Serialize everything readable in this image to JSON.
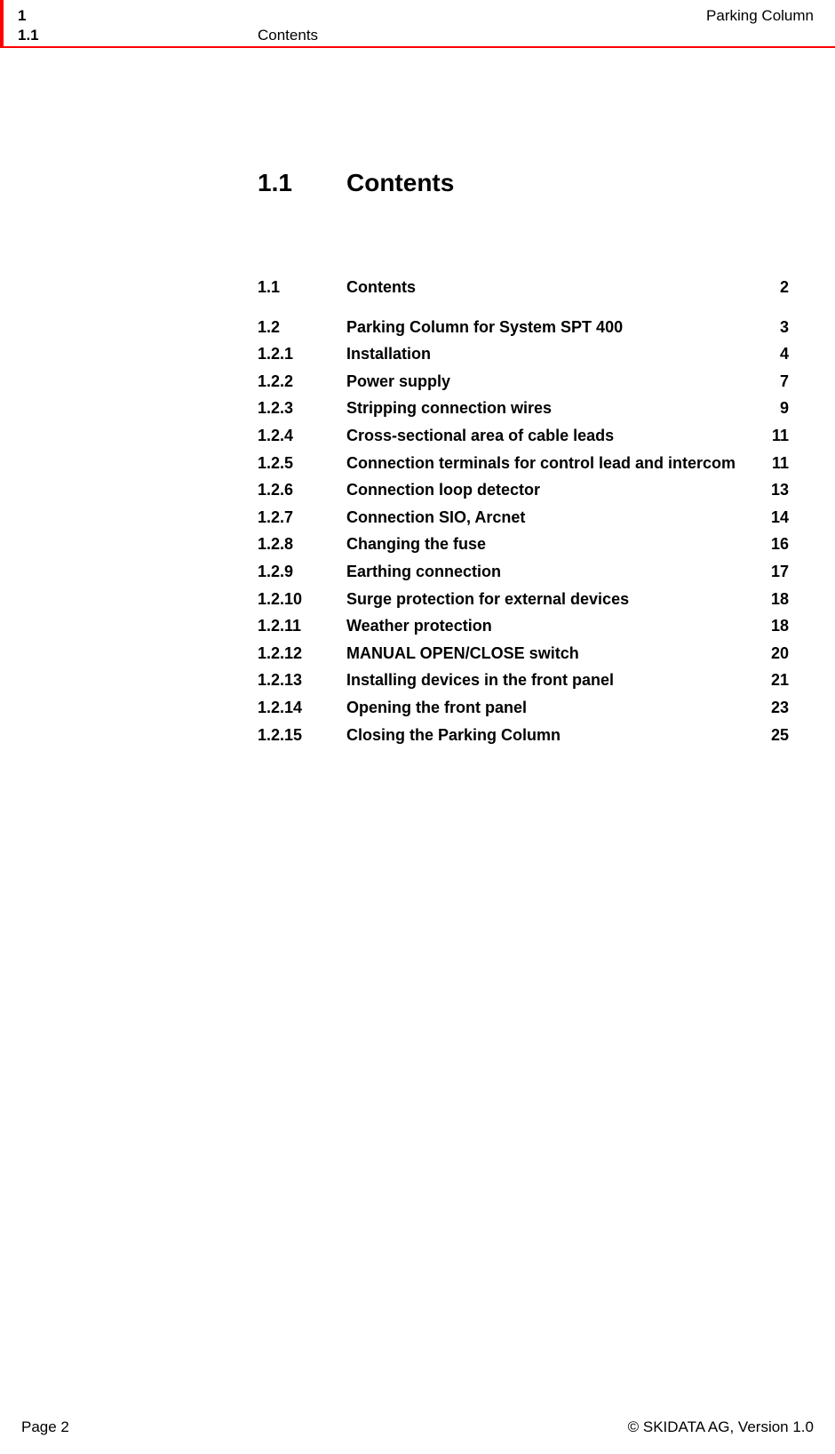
{
  "header": {
    "chapter_number": "1",
    "chapter_title": "Parking Column",
    "section_number": "1.1",
    "section_title": "Contents"
  },
  "main_heading": {
    "number": "1.1",
    "title": "Contents"
  },
  "toc": {
    "group1": [
      {
        "num": "1.1",
        "title": "Contents",
        "page": "2"
      }
    ],
    "group2": [
      {
        "num": "1.2",
        "title": "Parking Column for System SPT 400",
        "page": "3"
      },
      {
        "num": "1.2.1",
        "title": "Installation",
        "page": "4"
      },
      {
        "num": "1.2.2",
        "title": "Power supply",
        "page": "7"
      },
      {
        "num": "1.2.3",
        "title": "Stripping connection wires",
        "page": "9"
      },
      {
        "num": "1.2.4",
        "title": "Cross-sectional area of cable leads",
        "page": "11"
      },
      {
        "num": "1.2.5",
        "title": "Connection terminals for control lead and intercom",
        "page": "11"
      },
      {
        "num": "1.2.6",
        "title": "Connection loop detector",
        "page": "13"
      },
      {
        "num": "1.2.7",
        "title": "Connection SIO, Arcnet",
        "page": "14"
      },
      {
        "num": "1.2.8",
        "title": "Changing the fuse",
        "page": "16"
      },
      {
        "num": "1.2.9",
        "title": "Earthing connection",
        "page": "17"
      },
      {
        "num": "1.2.10",
        "title": "Surge protection for external devices",
        "page": "18"
      },
      {
        "num": "1.2.11",
        "title": "Weather protection",
        "page": "18"
      },
      {
        "num": "1.2.12",
        "title": "MANUAL OPEN/CLOSE switch",
        "page": "20"
      },
      {
        "num": "1.2.13",
        "title": "Installing devices in the front panel",
        "page": "21"
      },
      {
        "num": "1.2.14",
        "title": "Opening the front panel",
        "page": "23"
      },
      {
        "num": "1.2.15",
        "title": "Closing the Parking Column",
        "page": "25"
      }
    ]
  },
  "footer": {
    "left": "Page 2",
    "right": "© SKIDATA AG, Version 1.0"
  },
  "colors": {
    "accent": "#ff0000",
    "text": "#000000",
    "background": "#ffffff"
  }
}
